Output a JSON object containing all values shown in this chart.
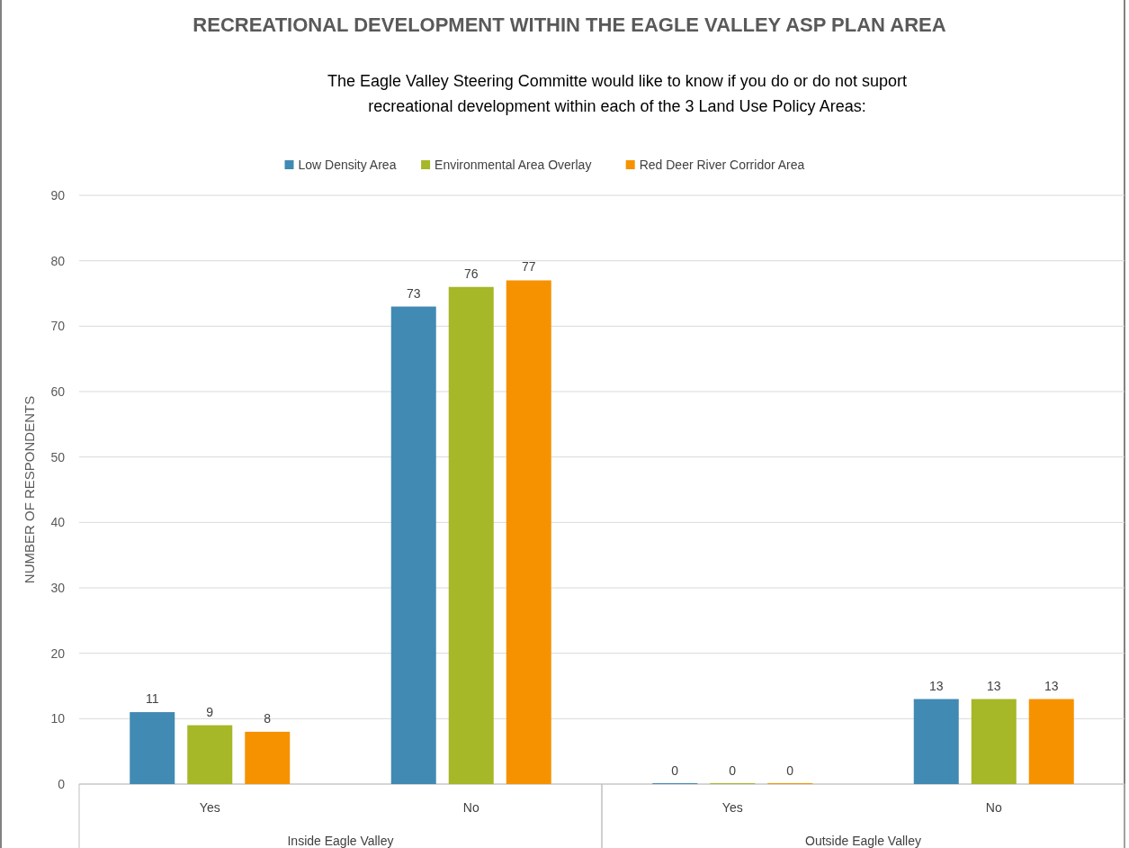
{
  "chart_data": {
    "type": "bar",
    "title": "RECREATIONAL DEVELOPMENT WITHIN THE EAGLE VALLEY ASP PLAN AREA",
    "subtitle": "The Eagle Valley Steering Committe would like to know if you do or do not suport\nrecreational development within each of the 3 Land Use Policy Areas:",
    "ylabel": "NUMBER OF RESPONDENTS",
    "categories": [
      "Yes",
      "No",
      "Yes",
      "No"
    ],
    "annotations": [
      "Inside Eagle Valley",
      "Outside Eagle Valley"
    ],
    "series": [
      {
        "name": "Low Density Area",
        "color": "#418ab3",
        "values": [
          11,
          73,
          0,
          13
        ]
      },
      {
        "name": "Environmental Area Overlay",
        "color": "#a6b727",
        "values": [
          9,
          76,
          0,
          13
        ]
      },
      {
        "name": "Red Deer River Corridor Area",
        "color": "#f69200",
        "values": [
          8,
          77,
          0,
          13
        ]
      }
    ],
    "ylim": [
      0,
      90
    ],
    "yticks": [
      0,
      10,
      20,
      30,
      40,
      50,
      60,
      70,
      80,
      90
    ],
    "grid": "y",
    "legend": "top",
    "data_labels": true
  }
}
